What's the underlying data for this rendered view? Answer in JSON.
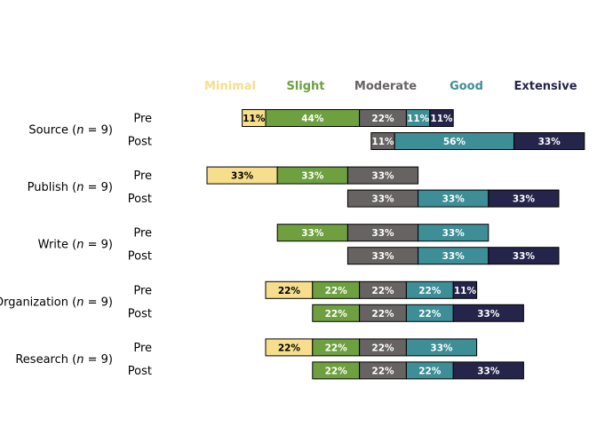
{
  "chart_data": {
    "type": "bar",
    "orientation": "horizontal",
    "stacked": "diverging",
    "legend": {
      "placement": "top",
      "items": [
        {
          "label": "Minimal",
          "color": "#f6de8c"
        },
        {
          "label": "Slight",
          "color": "#6ea040"
        },
        {
          "label": "Moderate",
          "color": "#666362"
        },
        {
          "label": "Good",
          "color": "#3d8e96"
        },
        {
          "label": "Extensive",
          "color": "#25244a"
        }
      ]
    },
    "groups": [
      {
        "name": "Source",
        "n": "9",
        "rows": [
          {
            "label": "Pre",
            "values": [
              11,
              44,
              22,
              11,
              11
            ]
          },
          {
            "label": "Post",
            "values": [
              0,
              0,
              11,
              56,
              33
            ]
          }
        ]
      },
      {
        "name": "Publish",
        "n": "9",
        "rows": [
          {
            "label": "Pre",
            "values": [
              33,
              33,
              33,
              0,
              0
            ]
          },
          {
            "label": "Post",
            "values": [
              0,
              0,
              33,
              33,
              33
            ]
          }
        ]
      },
      {
        "name": "Write",
        "n": "9",
        "rows": [
          {
            "label": "Pre",
            "values": [
              0,
              33,
              33,
              33,
              0
            ]
          },
          {
            "label": "Post",
            "values": [
              0,
              0,
              33,
              33,
              33
            ]
          }
        ]
      },
      {
        "name": "Organization",
        "n": "9",
        "rows": [
          {
            "label": "Pre",
            "values": [
              22,
              22,
              22,
              22,
              11
            ]
          },
          {
            "label": "Post",
            "values": [
              0,
              22,
              22,
              22,
              33
            ]
          }
        ]
      },
      {
        "name": "Research",
        "n": "9",
        "rows": [
          {
            "label": "Pre",
            "values": [
              22,
              22,
              22,
              33,
              0
            ]
          },
          {
            "label": "Post",
            "values": [
              0,
              22,
              22,
              22,
              33
            ]
          }
        ]
      }
    ],
    "value_suffix": "%",
    "label_text_colors": [
      "#000000",
      "#ffffff",
      "#ffffff",
      "#ffffff",
      "#ffffff"
    ],
    "grid": false,
    "title": "",
    "xlabel": "",
    "ylabel": ""
  }
}
